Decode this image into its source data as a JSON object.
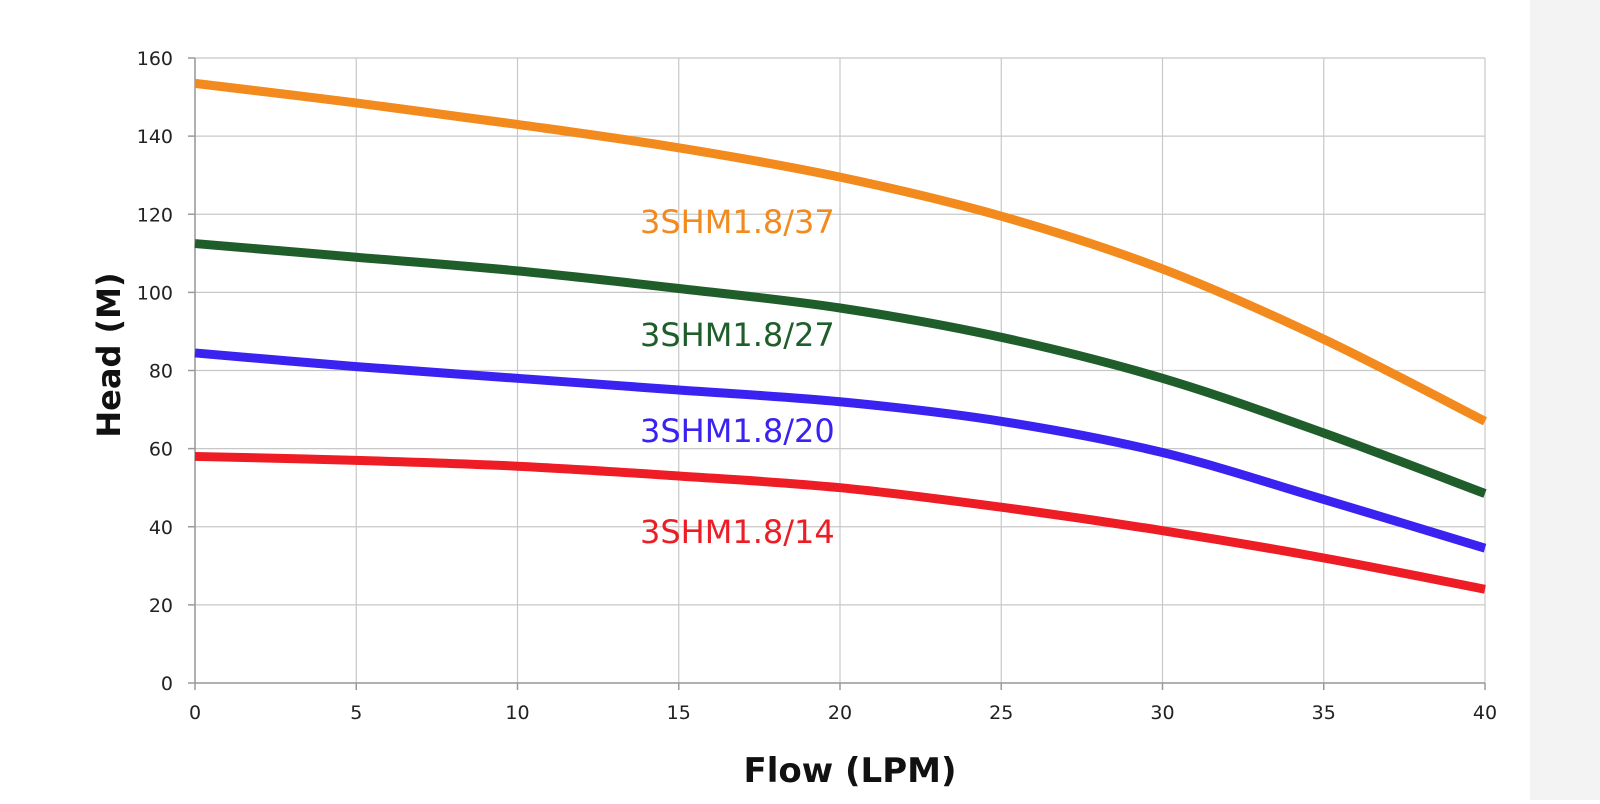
{
  "chart_data": {
    "type": "line",
    "xlabel": "Flow (LPM)",
    "ylabel": "Head (M)",
    "xlim": [
      0,
      40
    ],
    "ylim": [
      0,
      160
    ],
    "xticks": [
      0,
      5,
      10,
      15,
      20,
      25,
      30,
      35,
      40
    ],
    "yticks": [
      0,
      20,
      40,
      60,
      80,
      100,
      120,
      140,
      160
    ],
    "grid": true,
    "legend": "inline labels",
    "series": [
      {
        "name": "3SHM1.8/37",
        "color": "#f28a1d",
        "x": [
          0,
          5,
          10,
          15,
          20,
          25,
          30,
          35,
          40
        ],
        "y": [
          153.5,
          148.5,
          143,
          137,
          129.5,
          119.5,
          106,
          88,
          67
        ]
      },
      {
        "name": "3SHM1.8/27",
        "color": "#1f5e2a",
        "x": [
          0,
          5,
          10,
          15,
          20,
          25,
          30,
          35,
          40
        ],
        "y": [
          112.5,
          109,
          105.5,
          101,
          96,
          88.5,
          78,
          64,
          48.5
        ]
      },
      {
        "name": "3SHM1.8/20",
        "color": "#3a22f0",
        "x": [
          0,
          5,
          10,
          15,
          20,
          25,
          30,
          35,
          40
        ],
        "y": [
          84.5,
          81,
          78,
          75,
          72,
          67,
          59,
          47,
          34.5
        ]
      },
      {
        "name": "3SHM1.8/14",
        "color": "#ee1c24",
        "x": [
          0,
          5,
          10,
          15,
          20,
          25,
          30,
          35,
          40
        ],
        "y": [
          58,
          57,
          55.5,
          53,
          50,
          45,
          39,
          32,
          24
        ]
      }
    ]
  }
}
